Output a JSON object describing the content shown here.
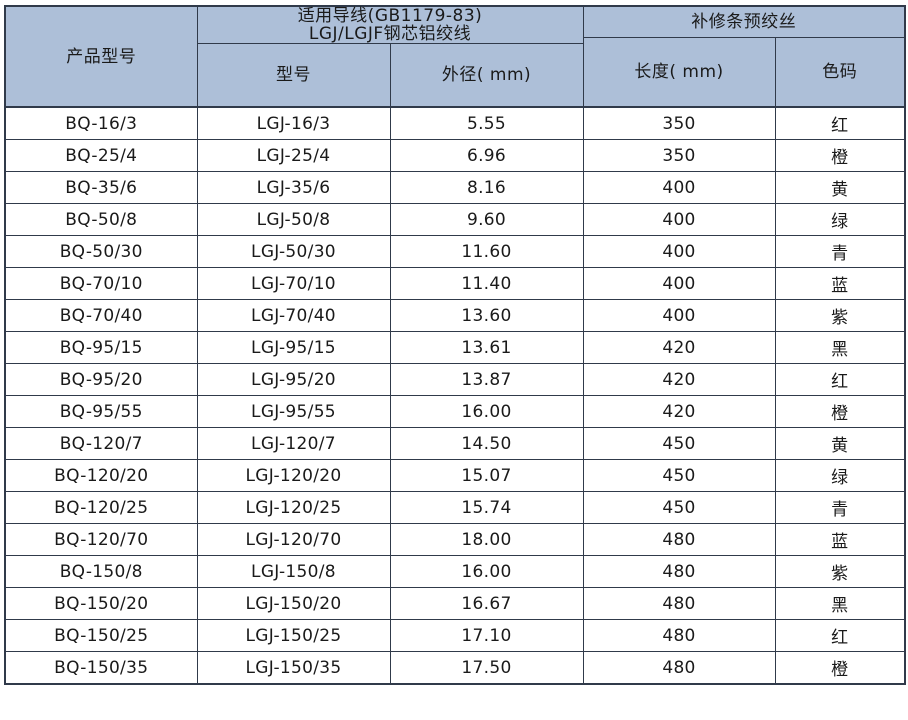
{
  "table": {
    "headers": {
      "product_model": "产品型号",
      "group_conductor_line1": "适用导线(GB1179-83)",
      "group_conductor_line2": "LGJ/LGJF钢芯铝绞线",
      "group_repair": "补修条预绞丝",
      "conductor_model": "型号",
      "outer_diameter": "外径( mm)",
      "length": "长度( mm)",
      "color_code": "色码"
    },
    "rows": [
      {
        "product": "BQ-16/3",
        "model": "LGJ-16/3",
        "diameter": "5.55",
        "length": "350",
        "color": "红"
      },
      {
        "product": "BQ-25/4",
        "model": "LGJ-25/4",
        "diameter": "6.96",
        "length": "350",
        "color": "橙"
      },
      {
        "product": "BQ-35/6",
        "model": "LGJ-35/6",
        "diameter": "8.16",
        "length": "400",
        "color": "黄"
      },
      {
        "product": "BQ-50/8",
        "model": "LGJ-50/8",
        "diameter": "9.60",
        "length": "400",
        "color": "绿"
      },
      {
        "product": "BQ-50/30",
        "model": "LGJ-50/30",
        "diameter": "11.60",
        "length": "400",
        "color": "青"
      },
      {
        "product": "BQ-70/10",
        "model": "LGJ-70/10",
        "diameter": "11.40",
        "length": "400",
        "color": "蓝"
      },
      {
        "product": "BQ-70/40",
        "model": "LGJ-70/40",
        "diameter": "13.60",
        "length": "400",
        "color": "紫"
      },
      {
        "product": "BQ-95/15",
        "model": "LGJ-95/15",
        "diameter": "13.61",
        "length": "420",
        "color": "黑"
      },
      {
        "product": "BQ-95/20",
        "model": "LGJ-95/20",
        "diameter": "13.87",
        "length": "420",
        "color": "红"
      },
      {
        "product": "BQ-95/55",
        "model": "LGJ-95/55",
        "diameter": "16.00",
        "length": "420",
        "color": "橙"
      },
      {
        "product": "BQ-120/7",
        "model": "LGJ-120/7",
        "diameter": "14.50",
        "length": "450",
        "color": "黄"
      },
      {
        "product": "BQ-120/20",
        "model": "LGJ-120/20",
        "diameter": "15.07",
        "length": "450",
        "color": "绿"
      },
      {
        "product": "BQ-120/25",
        "model": "LGJ-120/25",
        "diameter": "15.74",
        "length": "450",
        "color": "青"
      },
      {
        "product": "BQ-120/70",
        "model": "LGJ-120/70",
        "diameter": "18.00",
        "length": "480",
        "color": "蓝"
      },
      {
        "product": "BQ-150/8",
        "model": "LGJ-150/8",
        "diameter": "16.00",
        "length": "480",
        "color": "紫"
      },
      {
        "product": "BQ-150/20",
        "model": "LGJ-150/20",
        "diameter": "16.67",
        "length": "480",
        "color": "黑"
      },
      {
        "product": "BQ-150/25",
        "model": "LGJ-150/25",
        "diameter": "17.10",
        "length": "480",
        "color": "红"
      },
      {
        "product": "BQ-150/35",
        "model": "LGJ-150/35",
        "diameter": "17.50",
        "length": "480",
        "color": "橙"
      }
    ]
  }
}
